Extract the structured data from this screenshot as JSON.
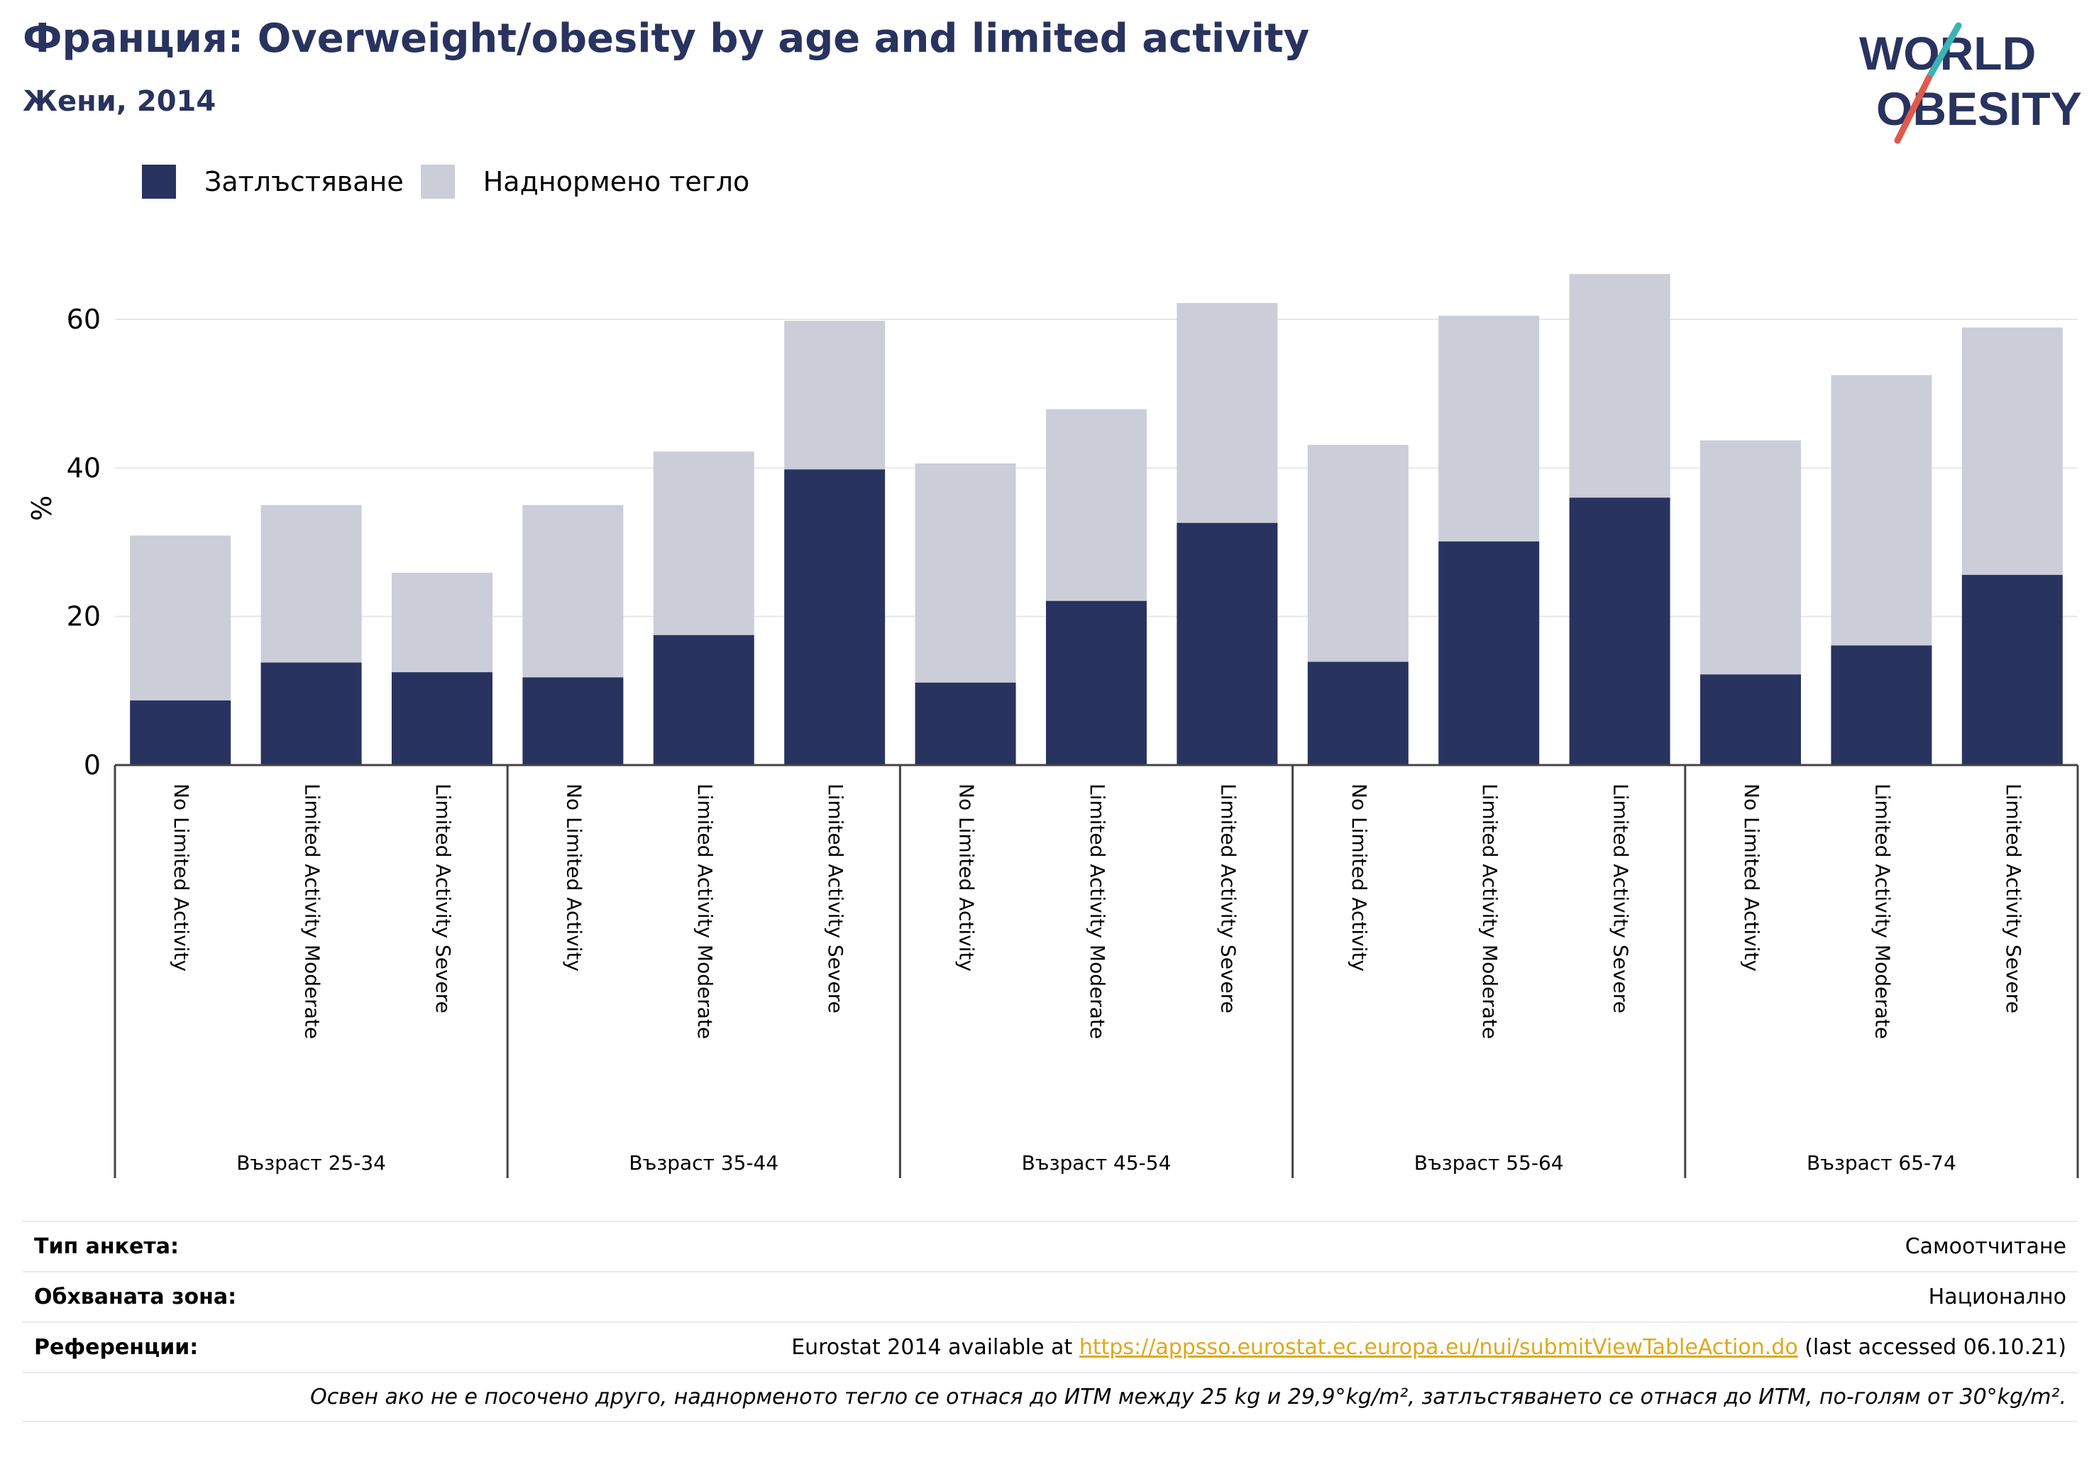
{
  "header": {
    "title": "Франция: Overweight/obesity by age and limited activity",
    "subtitle": "Жени, 2014"
  },
  "logo": {
    "line1": "WORLD",
    "line2": "OBESITY"
  },
  "colors": {
    "obesity": "#29335f",
    "overweight": "#cbcdd9",
    "text": "#29335f",
    "accent_teal": "#3bb3b3",
    "accent_red": "#e05a4c"
  },
  "legend": {
    "obesity": "Затлъстяване",
    "overweight": "Наднормено тегло"
  },
  "chart_data": {
    "type": "bar",
    "stacked": true,
    "ylabel": "%",
    "ylim": [
      0,
      70
    ],
    "yticks": [
      "0",
      "20",
      "40",
      "60"
    ],
    "grid": true,
    "legend_position": "top-left",
    "categories": [
      "No Limited Activity",
      "Limited Activity Moderate",
      "Limited Activity Severe",
      "No Limited Activity",
      "Limited Activity Moderate",
      "Limited Activity Severe",
      "No Limited Activity",
      "Limited Activity Moderate",
      "Limited Activity Severe",
      "No Limited Activity",
      "Limited Activity Moderate",
      "Limited Activity Severe",
      "No Limited Activity",
      "Limited Activity Moderate",
      "Limited Activity Severe"
    ],
    "groups": [
      "Възраст 25-34",
      "Възраст 35-44",
      "Възраст 45-54",
      "Възраст 55-64",
      "Възраст 65-74"
    ],
    "series": [
      {
        "name": "Затлъстяване",
        "values": [
          8.7,
          13.8,
          12.5,
          11.8,
          17.5,
          39.8,
          11.1,
          22.1,
          32.6,
          13.9,
          30.1,
          36.0,
          12.2,
          16.1,
          25.6
        ]
      },
      {
        "name": "Наднормено тегло",
        "values": [
          22.2,
          21.2,
          13.4,
          23.2,
          24.7,
          20.0,
          29.5,
          25.8,
          29.6,
          29.2,
          30.4,
          30.1,
          31.5,
          36.4,
          33.3
        ]
      }
    ]
  },
  "footer": {
    "survey_type_label": "Тип анкета:",
    "survey_type_value": "Самоотчитане",
    "coverage_label": "Обхваната зона:",
    "coverage_value": "Национално",
    "references_label": "Референции:",
    "references_prefix": "Eurostat 2014 available at ",
    "references_link": "https://appsso.eurostat.ec.europa.eu/nui/submitViewTableAction.do",
    "references_suffix": " (last accessed 06.10.21)",
    "note": "Освен ако не е посочено друго, наднорменото тегло се отнася до ИТМ между 25 kg и 29,9°kg/m², затлъстяването се отнася до ИТМ, по-голям от 30°kg/m²."
  }
}
